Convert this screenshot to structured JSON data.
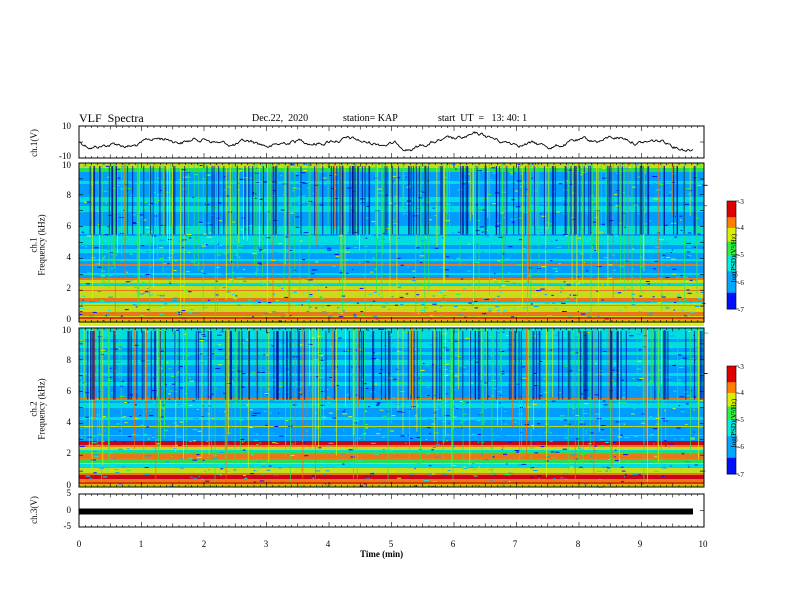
{
  "header": {
    "title": "VLF  Spectra",
    "date": "Dec.22,  2020",
    "station": "station= KAP",
    "start": "start  UT  =   13: 40: 1"
  },
  "chart_data": [
    {
      "type": "line",
      "panel": "ch1-waveform",
      "ylabel": "ch.1(V)",
      "ylim": [
        -10,
        10
      ],
      "yticks": [
        "10",
        "-10"
      ],
      "xlim": [
        0,
        10
      ]
    },
    {
      "type": "heatmap",
      "panel": "ch1-spectrogram",
      "ylabel_line1": "ch.1",
      "ylabel_line2": "Frequency (kHz)",
      "ylim": [
        0,
        10
      ],
      "yticks": [
        "0",
        "2",
        "4",
        "6",
        "8",
        "10"
      ],
      "colorbar": {
        "label": "log(PSD)(V²/Hz)",
        "ticks": [
          "-3",
          "-4",
          "-5",
          "-6",
          "-7"
        ],
        "range": [
          -7,
          -3
        ]
      }
    },
    {
      "type": "heatmap",
      "panel": "ch2-spectrogram",
      "ylabel_line1": "ch.2",
      "ylabel_line2": "Frequency (kHz)",
      "ylim": [
        0,
        10
      ],
      "yticks": [
        "0",
        "2",
        "4",
        "6",
        "8",
        "10"
      ],
      "colorbar": {
        "label": "log(PSD)(V²/Hz)",
        "ticks": [
          "-3",
          "-4",
          "-5",
          "-6",
          "-7"
        ],
        "range": [
          -7,
          -3
        ]
      }
    },
    {
      "type": "line",
      "panel": "ch3-waveform",
      "ylabel": "ch.3(V)",
      "ylim": [
        -5,
        5
      ],
      "yticks": [
        "5",
        "0",
        "-5"
      ],
      "xlim": [
        0,
        10
      ]
    }
  ],
  "xaxis": {
    "label": "Time  (min)",
    "ticks": [
      "0",
      "1",
      "2",
      "3",
      "4",
      "5",
      "6",
      "7",
      "8",
      "9",
      "10"
    ]
  }
}
